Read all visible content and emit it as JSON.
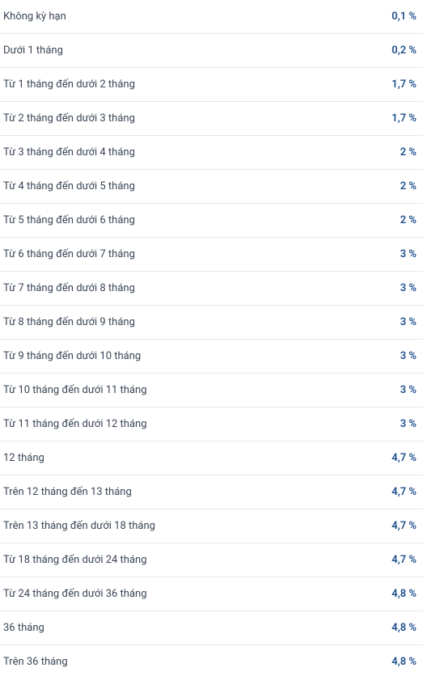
{
  "rows": [
    {
      "label": "Không kỳ hạn",
      "value": "0,1 %"
    },
    {
      "label": "Dưới 1 tháng",
      "value": "0,2 %"
    },
    {
      "label": "Từ 1 tháng đến dưới 2 tháng",
      "value": "1,7 %"
    },
    {
      "label": "Từ 2 tháng đến dưới 3 tháng",
      "value": "1,7 %"
    },
    {
      "label": "Từ 3 tháng đến dưới 4 tháng",
      "value": "2 %"
    },
    {
      "label": "Từ 4 tháng đến dưới 5 tháng",
      "value": "2 %"
    },
    {
      "label": "Từ 5 tháng đến dưới 6 tháng",
      "value": "2 %"
    },
    {
      "label": "Từ 6 tháng đến dưới 7 tháng",
      "value": "3 %"
    },
    {
      "label": "Từ 7 tháng đến dưới 8 tháng",
      "value": "3 %"
    },
    {
      "label": "Từ 8 tháng đến dưới 9 tháng",
      "value": "3 %"
    },
    {
      "label": "Từ 9 tháng đến dưới 10 tháng",
      "value": "3 %"
    },
    {
      "label": "Từ 10 tháng đến dưới 11 tháng",
      "value": "3 %"
    },
    {
      "label": "Từ 11 tháng đến dưới 12 tháng",
      "value": "3 %"
    },
    {
      "label": "12 tháng",
      "value": "4,7 %"
    },
    {
      "label": "Trên 12 tháng đến 13 tháng",
      "value": "4,7 %"
    },
    {
      "label": "Trên 13 tháng đến dưới 18 tháng",
      "value": "4,7 %"
    },
    {
      "label": "Từ 18 tháng đến dưới 24 tháng",
      "value": "4,7 %"
    },
    {
      "label": "Từ 24 tháng đến dưới 36 tháng",
      "value": "4,8 %"
    },
    {
      "label": "36 tháng",
      "value": "4,8 %"
    },
    {
      "label": "Trên 36 tháng",
      "value": "4,8 %"
    }
  ],
  "styling": {
    "label_color": "#3a4556",
    "value_color": "#1e4f8c",
    "border_color": "#e5e8ec",
    "background_color": "#ffffff",
    "font_size": 13,
    "row_padding_vertical": 13,
    "value_font_weight": 600,
    "label_font_weight": 400
  }
}
